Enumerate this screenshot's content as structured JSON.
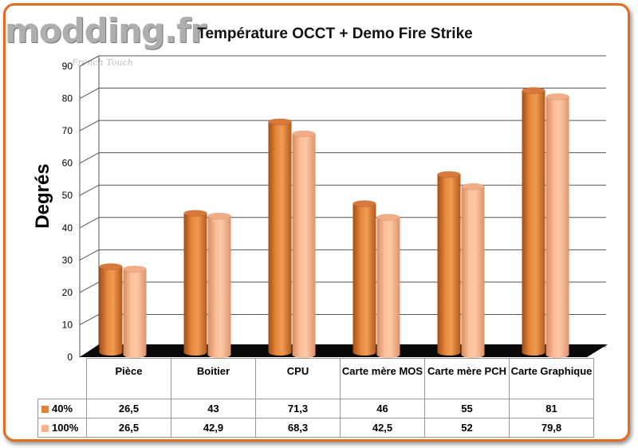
{
  "logo": {
    "text": "modding.fr",
    "tagline": "French Touch"
  },
  "colors": {
    "series_40": "#e0813c",
    "series_100": "#f7b38d",
    "frame": "#e56b1f",
    "floor": "#0a0a0a"
  },
  "chart_data": {
    "type": "bar",
    "title": "Température OCCT + Demo Fire Strike",
    "xlabel": "",
    "ylabel": "Degrés",
    "ylim": [
      0,
      90
    ],
    "yticks": [
      0,
      10,
      20,
      30,
      40,
      50,
      60,
      70,
      80,
      90
    ],
    "grid": true,
    "categories": [
      "Pièce",
      "Boitier",
      "CPU",
      "Carte mère MOS",
      "Carte mère PCH",
      "Carte Graphique"
    ],
    "series": [
      {
        "name": "40%",
        "values": [
          26.5,
          43,
          71.3,
          46,
          55,
          81
        ],
        "labels": [
          "26,5",
          "43",
          "71,3",
          "46",
          "55",
          "81"
        ]
      },
      {
        "name": "100%",
        "values": [
          26.5,
          42.9,
          68.3,
          42.5,
          52,
          79.8
        ],
        "labels": [
          "26,5",
          "42,9",
          "68,3",
          "42,5",
          "52",
          "79,8"
        ]
      }
    ]
  }
}
